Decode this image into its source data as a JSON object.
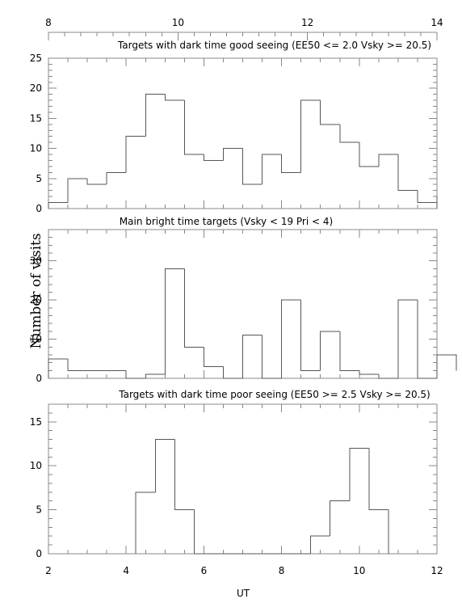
{
  "chart_data": [
    {
      "type": "histogram",
      "title": "Targets with dark time good seeing (EE50 <= 2.0 Vsky >= 20.5)",
      "bin_start": 2.0,
      "bin_width": 0.5,
      "values": [
        1,
        5,
        4,
        6,
        12,
        19,
        18,
        9,
        8,
        10,
        4,
        9,
        6,
        18,
        14,
        11,
        7,
        9,
        3,
        1,
        2
      ],
      "ylim": [
        0,
        25
      ],
      "yticks": [
        0,
        5,
        10,
        15,
        20,
        25
      ],
      "y_minor": 1,
      "ytick_labels": [
        "0",
        "5",
        "10",
        "15",
        "20",
        "25"
      ]
    },
    {
      "type": "histogram",
      "title": "Main bright time targets (Vsky < 19 Pri < 4)",
      "bin_start": 2.0,
      "bin_width": 0.5,
      "values": [
        5,
        2,
        2,
        2,
        0,
        1,
        28,
        8,
        3,
        0,
        11,
        0,
        20,
        2,
        12,
        2,
        1,
        0,
        20,
        0,
        2,
        6
      ],
      "ylim": [
        0,
        38
      ],
      "yticks": [
        0,
        10,
        20,
        30
      ],
      "y_minor": 2,
      "ytick_labels": [
        "0",
        "10",
        "20",
        "30"
      ]
    },
    {
      "type": "histogram",
      "title": "Targets with dark time poor seeing (EE50 >= 2.5 Vsky >= 20.5)",
      "bin_start": 4.25,
      "bin_width": 0.5,
      "values": [
        7,
        13,
        5,
        0,
        0,
        0,
        0,
        0,
        0,
        2,
        6,
        12,
        5
      ],
      "ylim": [
        0,
        17
      ],
      "yticks": [
        0,
        5,
        10,
        15
      ],
      "y_minor": 1,
      "ytick_labels": [
        "0",
        "5",
        "10",
        "15"
      ]
    }
  ],
  "x_axis": {
    "label": "UT",
    "range": [
      2,
      12
    ],
    "ticks": [
      2,
      4,
      6,
      8,
      10,
      12
    ],
    "tick_labels": [
      "2",
      "4",
      "6",
      "8",
      "10",
      "12"
    ],
    "minor": 0.5
  },
  "top_axis": {
    "range": [
      8,
      14
    ],
    "ticks": [
      8,
      10,
      12,
      14
    ],
    "tick_labels": [
      "8",
      "10",
      "12",
      "14"
    ],
    "minor": 0.25
  },
  "ylabel": "Number of visits",
  "colors": {
    "histogram": "#555555",
    "axes": "#888888",
    "text": "#000000"
  }
}
